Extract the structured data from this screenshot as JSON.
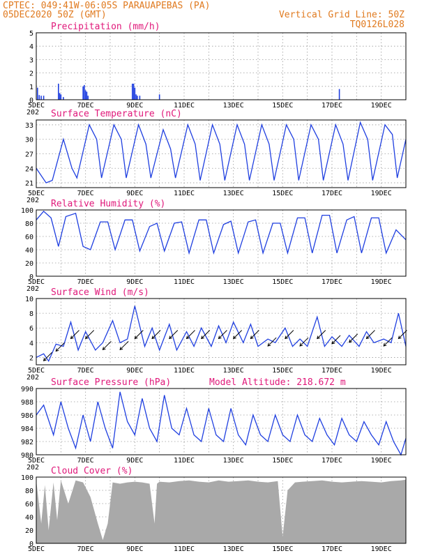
{
  "header": {
    "left_line1": "CPTEC:   049:41W-06:05S  PARAUAPEBAS (PA)",
    "left_line2": "05DEC2020 50Z (GMT)",
    "right_line1": "Vertical Grid Line: 50Z",
    "right_line2": "TQ0126L028"
  },
  "colors": {
    "header": "#e07a1f",
    "title": "#e0187a",
    "series": "#1f3fe0",
    "cloud": "#a9a9a9"
  },
  "x_tick_labels": [
    "5DEC",
    "7DEC",
    "9DEC",
    "11DEC",
    "13DEC",
    "15DEC",
    "17DEC",
    "19DEC"
  ],
  "year_fragment": "202",
  "chart_data": [
    {
      "id": "precip",
      "type": "bar",
      "title": "Precipitation (mm/h)",
      "ylim": [
        0,
        5
      ],
      "yticks": [
        0,
        1,
        2,
        3,
        4,
        5
      ],
      "x_unit": "days since 5DEC 00Z (ticks every 2 days from 5DEC to 19DEC)",
      "x": [
        0.05,
        0.12,
        0.2,
        0.3,
        0.9,
        0.95,
        1.0,
        1.1,
        1.9,
        1.95,
        2.0,
        2.05,
        2.1,
        3.9,
        3.95,
        4.0,
        4.05,
        4.1,
        4.2,
        5.0,
        12.3
      ],
      "values": [
        0.9,
        0.35,
        0.3,
        0.3,
        1.2,
        0.5,
        0.4,
        0.2,
        1.0,
        1.1,
        0.7,
        0.6,
        0.3,
        1.2,
        1.2,
        0.9,
        0.4,
        0.3,
        0.3,
        0.4,
        0.8
      ]
    },
    {
      "id": "temp",
      "type": "line",
      "title": "Surface Temperature (nC)",
      "ylim": [
        20,
        34
      ],
      "yticks": [
        21,
        24,
        27,
        30,
        33
      ],
      "x": [
        0,
        0.4,
        0.65,
        1.1,
        1.45,
        1.65,
        2.15,
        2.45,
        2.65,
        3.15,
        3.45,
        3.65,
        4.15,
        4.45,
        4.65,
        5.15,
        5.45,
        5.65,
        6.15,
        6.45,
        6.65,
        7.15,
        7.45,
        7.65,
        8.15,
        8.45,
        8.65,
        9.15,
        9.45,
        9.65,
        10.15,
        10.45,
        10.65,
        11.15,
        11.45,
        11.65,
        12.15,
        12.45,
        12.65,
        13.15,
        13.45,
        13.65,
        14.15,
        14.45,
        14.65,
        15
      ],
      "values": [
        24,
        21,
        21.5,
        30,
        24,
        22,
        33,
        30,
        22,
        33,
        30,
        22,
        33,
        29,
        22,
        32,
        28,
        22,
        33,
        29,
        21.5,
        33,
        29,
        21.5,
        33,
        29,
        21.5,
        33,
        29,
        21.5,
        33,
        30,
        21.5,
        33,
        30,
        21.5,
        33,
        29,
        21.5,
        33.5,
        30,
        21.5,
        33,
        31,
        22,
        30
      ]
    },
    {
      "id": "rh",
      "type": "line",
      "title": "Relative Humidity (%)",
      "ylim": [
        0,
        100
      ],
      "yticks": [
        0,
        20,
        40,
        60,
        80,
        100
      ],
      "x": [
        0,
        0.3,
        0.6,
        0.9,
        1.2,
        1.6,
        1.9,
        2.2,
        2.6,
        2.9,
        3.2,
        3.6,
        3.9,
        4.2,
        4.6,
        4.9,
        5.2,
        5.6,
        5.9,
        6.2,
        6.6,
        6.9,
        7.2,
        7.6,
        7.9,
        8.2,
        8.6,
        8.9,
        9.2,
        9.6,
        9.9,
        10.2,
        10.6,
        10.9,
        11.2,
        11.6,
        11.9,
        12.2,
        12.6,
        12.9,
        13.2,
        13.6,
        13.9,
        14.2,
        14.6,
        15
      ],
      "values": [
        85,
        98,
        88,
        45,
        90,
        95,
        45,
        40,
        82,
        82,
        40,
        85,
        85,
        38,
        75,
        80,
        38,
        80,
        82,
        35,
        85,
        85,
        35,
        78,
        83,
        35,
        82,
        85,
        35,
        80,
        80,
        35,
        88,
        88,
        35,
        92,
        92,
        35,
        85,
        90,
        35,
        88,
        88,
        35,
        70,
        55
      ]
    },
    {
      "id": "wind",
      "type": "line",
      "title": "Surface Wind (m/s)",
      "ylim": [
        1,
        10
      ],
      "yticks": [
        2,
        4,
        6,
        8,
        10
      ],
      "x": [
        0,
        0.3,
        0.5,
        0.8,
        1.1,
        1.4,
        1.7,
        2.0,
        2.4,
        2.7,
        3.1,
        3.4,
        3.7,
        4.0,
        4.4,
        4.7,
        5.0,
        5.4,
        5.7,
        6.1,
        6.4,
        6.7,
        7.1,
        7.4,
        7.7,
        8.0,
        8.4,
        8.7,
        9.0,
        9.4,
        9.7,
        10.1,
        10.4,
        10.7,
        11.0,
        11.4,
        11.7,
        12.0,
        12.4,
        12.7,
        13.1,
        13.4,
        13.7,
        14.1,
        14.4,
        14.7,
        15
      ],
      "values": [
        2,
        2.5,
        1.5,
        3.8,
        3.5,
        6.8,
        3.0,
        5.5,
        3.0,
        4.0,
        7.0,
        4.0,
        4.5,
        9.0,
        3.5,
        6.0,
        3.0,
        6.5,
        3.0,
        5.5,
        3.5,
        6.0,
        3.5,
        6.3,
        4.0,
        6.8,
        4.0,
        6.5,
        3.5,
        4.5,
        4.0,
        6.0,
        3.5,
        4.5,
        3.5,
        7.5,
        3.5,
        4.8,
        3.5,
        5.0,
        3.5,
        5.5,
        4.0,
        4.5,
        4.0,
        8.0,
        3.5
      ]
    },
    {
      "id": "press",
      "type": "line",
      "title": "Surface Pressure (hPa)",
      "note": "Model Altitude: 218.672 m",
      "ylim": [
        980,
        990
      ],
      "yticks": [
        980,
        982,
        984,
        986,
        988,
        990
      ],
      "x": [
        0,
        0.3,
        0.7,
        1.0,
        1.3,
        1.6,
        1.9,
        2.2,
        2.5,
        2.8,
        3.1,
        3.4,
        3.7,
        4.0,
        4.3,
        4.6,
        4.9,
        5.2,
        5.5,
        5.8,
        6.1,
        6.4,
        6.7,
        7.0,
        7.3,
        7.6,
        7.9,
        8.2,
        8.5,
        8.8,
        9.1,
        9.4,
        9.7,
        10.0,
        10.3,
        10.6,
        10.9,
        11.2,
        11.5,
        11.8,
        12.1,
        12.4,
        12.7,
        13.0,
        13.3,
        13.6,
        13.9,
        14.2,
        14.5,
        14.8,
        15
      ],
      "values": [
        986,
        987.5,
        983,
        988,
        984,
        981,
        986,
        982,
        988,
        984,
        981,
        989.5,
        985,
        983,
        988.5,
        984,
        982,
        989,
        984,
        983,
        987,
        983,
        982,
        987,
        983,
        982,
        987,
        983,
        981.5,
        986,
        983,
        982,
        986,
        983,
        982,
        986,
        983,
        982,
        985.5,
        983,
        981.5,
        985.5,
        983,
        982,
        985,
        983,
        981.5,
        985,
        982,
        980,
        982.5
      ]
    },
    {
      "id": "cloud",
      "type": "area",
      "title": "Cloud Cover (%)",
      "ylim": [
        0,
        100
      ],
      "yticks": [
        0,
        20,
        40,
        60,
        80,
        100
      ],
      "x": [
        0,
        0.2,
        0.35,
        0.5,
        0.7,
        0.85,
        1.0,
        1.3,
        1.6,
        1.9,
        2.2,
        2.5,
        2.7,
        2.9,
        3.1,
        3.4,
        3.7,
        4.0,
        4.3,
        4.6,
        4.8,
        4.9,
        5.0,
        5.4,
        5.8,
        6.2,
        6.6,
        7.0,
        7.4,
        7.8,
        8.2,
        8.6,
        9.0,
        9.4,
        9.8,
        10.0,
        10.2,
        10.5,
        10.8,
        11.2,
        11.6,
        12.0,
        12.4,
        12.8,
        13.2,
        13.6,
        14.0,
        14.4,
        14.8,
        15
      ],
      "values": [
        95,
        30,
        88,
        20,
        92,
        35,
        95,
        60,
        95,
        92,
        70,
        30,
        5,
        30,
        92,
        90,
        92,
        93,
        92,
        90,
        30,
        90,
        93,
        92,
        94,
        95,
        93,
        92,
        95,
        93,
        94,
        95,
        93,
        92,
        94,
        10,
        80,
        92,
        93,
        94,
        95,
        93,
        92,
        93,
        94,
        93,
        92,
        94,
        95,
        96
      ]
    }
  ]
}
